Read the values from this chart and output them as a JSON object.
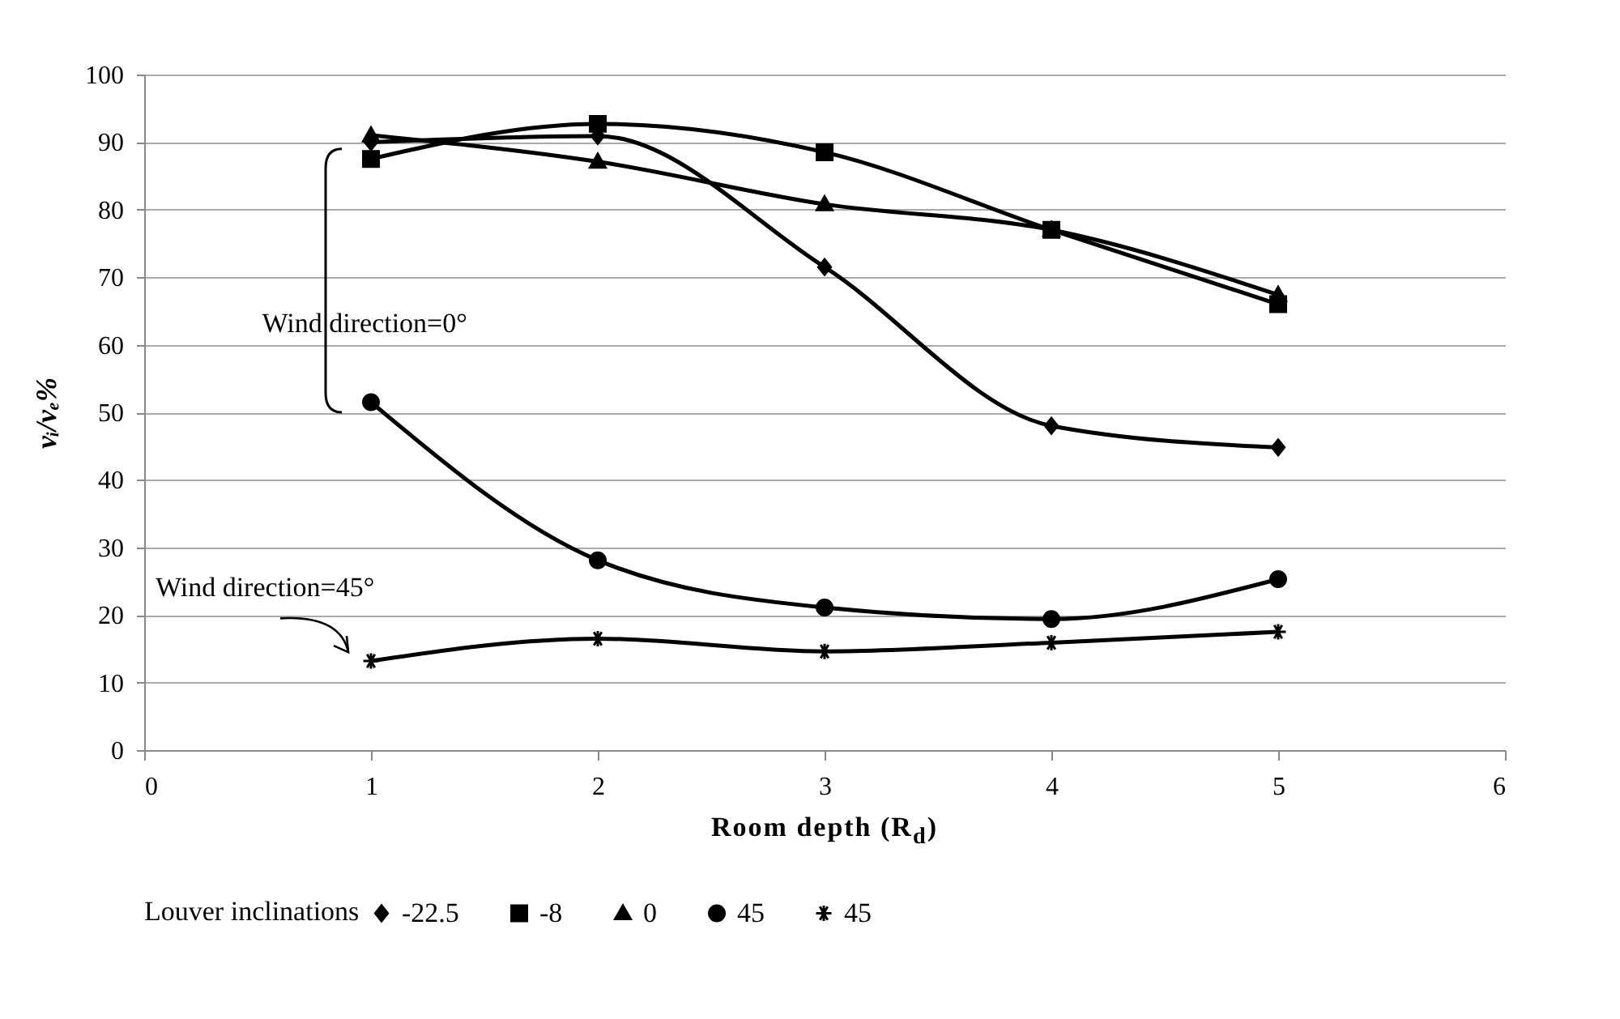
{
  "chart_data": {
    "type": "line",
    "xlabel": "Room depth (R$_{d}$)",
    "ylabel": "vᵢ/vₑ%",
    "legend_title": "Louver inclinations",
    "legend": "bottom",
    "grid": "y",
    "x": [
      1,
      2,
      3,
      4,
      5
    ],
    "xlim": [
      0,
      6
    ],
    "xticks": [
      0,
      1,
      2,
      3,
      4,
      5,
      6
    ],
    "ylim": [
      0,
      100
    ],
    "yticks": [
      0,
      10,
      20,
      30,
      40,
      50,
      60,
      70,
      80,
      90,
      100
    ],
    "series": [
      {
        "name": "-22.5",
        "color": "#000000",
        "marker": "diamond",
        "values": [
          90,
          90.9,
          71.5,
          48,
          44.8
        ]
      },
      {
        "name": "-8",
        "color": "#000000",
        "marker": "square",
        "values": [
          87.5,
          92.7,
          88.5,
          77,
          66
        ]
      },
      {
        "name": "0",
        "color": "#000000",
        "marker": "triangle",
        "values": [
          91,
          87.1,
          80.8,
          77,
          67.4
        ]
      },
      {
        "name": "45",
        "color": "#000000",
        "marker": "circle",
        "values": [
          51.5,
          28.1,
          21.1,
          19.4,
          25.3
        ]
      },
      {
        "name": "45",
        "color": "#000000",
        "marker": "cross",
        "values": [
          13.2,
          16.5,
          14.6,
          15.9,
          17.5
        ]
      }
    ],
    "annotations": [
      "Wind direction=0°",
      "Wind direction=45°"
    ]
  }
}
